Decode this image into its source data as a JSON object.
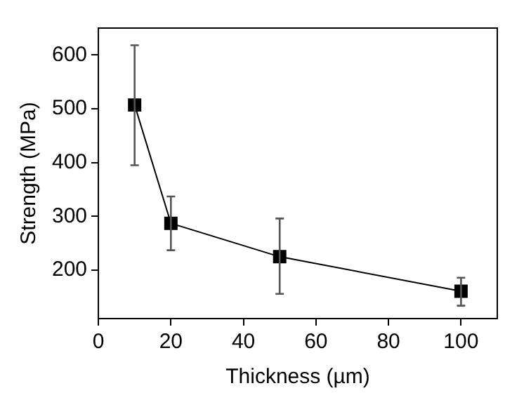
{
  "chart_data": {
    "type": "line",
    "xlabel": "Thickness (µm)",
    "ylabel": "Strength (MPa)",
    "x": [
      10,
      20,
      50,
      100
    ],
    "series": [
      {
        "color": "#000000",
        "values": [
          507,
          287,
          225,
          161
        ],
        "errors": [
          [
            395,
            618
          ],
          [
            237,
            337
          ],
          [
            156,
            296
          ],
          [
            134,
            186
          ]
        ]
      }
    ],
    "xlim": [
      0,
      110
    ],
    "xticks": [
      0,
      20,
      40,
      60,
      80,
      100
    ],
    "ylim": [
      110,
      650
    ],
    "yticks": [
      200,
      300,
      400,
      500,
      600
    ],
    "marker": "square",
    "line_style": "solid",
    "grid": false,
    "legend": false
  }
}
